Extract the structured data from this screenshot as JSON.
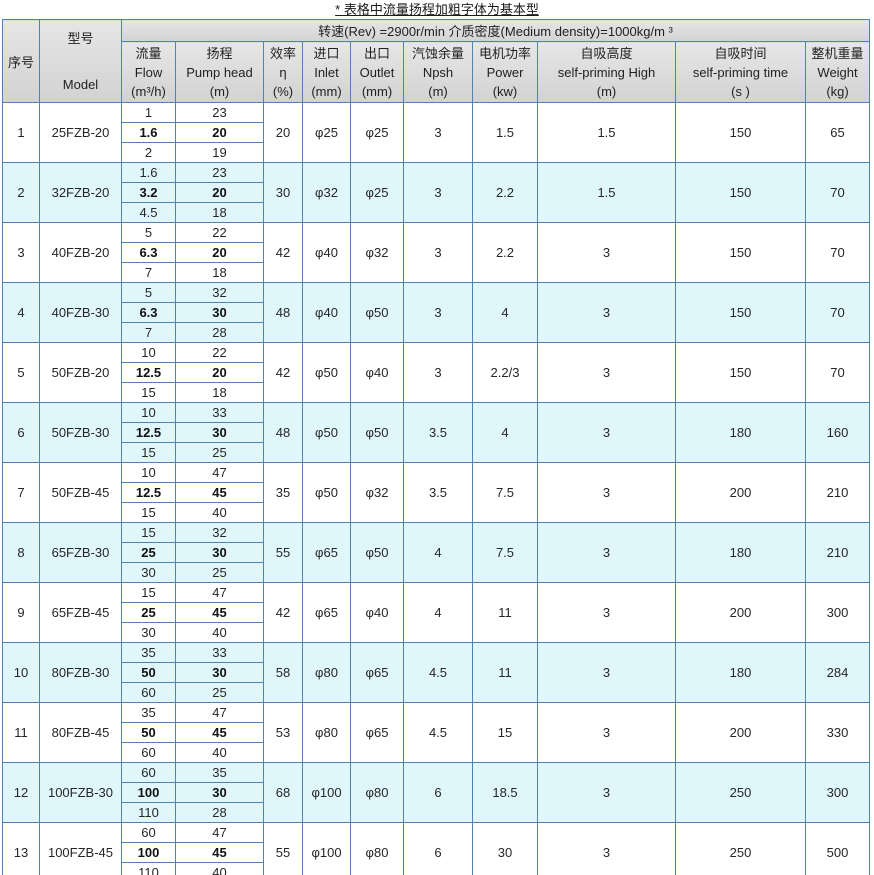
{
  "title": "* 表格中流量扬程加粗字体为基本型",
  "colors": {
    "border_inner": "#4f81b5",
    "border_outer_bottom": "#17375e",
    "row_shade": "#dff6fb",
    "header_bg": "#d9d9d9"
  },
  "table": {
    "span_header": "转速(Rev) =2900r/min  介质密度(Medium density)=1000kg/m ³",
    "columns": {
      "index": "序号",
      "model": [
        "型号",
        "Model"
      ],
      "flow": [
        "流量",
        "Flow",
        "(m³/h)"
      ],
      "head": [
        "扬程",
        "Pump head",
        "(m)"
      ],
      "eff": [
        "效率",
        "η",
        "(%)"
      ],
      "inlet": [
        "进口",
        "Inlet",
        "(mm)"
      ],
      "outlet": [
        "出口",
        "Outlet",
        "(mm)"
      ],
      "npsh": [
        "汽蚀余量",
        "Npsh",
        "(m)"
      ],
      "power": [
        "电机功率",
        "Power",
        "(kw)"
      ],
      "high": [
        "自吸高度",
        "self-priming High",
        "(m)"
      ],
      "time": [
        "自吸时间",
        "self-priming time",
        "(s )"
      ],
      "weight": [
        "整机重量",
        "Weight",
        "(kg)"
      ]
    },
    "column_keys": [
      "flow",
      "head",
      "eff",
      "inlet",
      "outlet",
      "npsh",
      "power",
      "high",
      "time",
      "weight"
    ],
    "rows": [
      {
        "no": "1",
        "model": "25FZB-20",
        "flow": [
          "1",
          "1.6",
          "2"
        ],
        "head": [
          "23",
          "20",
          "19"
        ],
        "eff": "20",
        "inlet": "φ25",
        "outlet": "φ25",
        "npsh": "3",
        "power": "1.5",
        "high": "1.5",
        "time": "150",
        "weight": "65",
        "shaded": false
      },
      {
        "no": "2",
        "model": "32FZB-20",
        "flow": [
          "1.6",
          "3.2",
          "4.5"
        ],
        "head": [
          "23",
          "20",
          "18"
        ],
        "eff": "30",
        "inlet": "φ32",
        "outlet": "φ25",
        "npsh": "3",
        "power": "2.2",
        "high": "1.5",
        "time": "150",
        "weight": "70",
        "shaded": true
      },
      {
        "no": "3",
        "model": "40FZB-20",
        "flow": [
          "5",
          "6.3",
          "7"
        ],
        "head": [
          "22",
          "20",
          "18"
        ],
        "eff": "42",
        "inlet": "φ40",
        "outlet": "φ32",
        "npsh": "3",
        "power": "2.2",
        "high": "3",
        "time": "150",
        "weight": "70",
        "shaded": false
      },
      {
        "no": "4",
        "model": "40FZB-30",
        "flow": [
          "5",
          "6.3",
          "7"
        ],
        "head": [
          "32",
          "30",
          "28"
        ],
        "eff": "48",
        "inlet": "φ40",
        "outlet": "φ50",
        "npsh": "3",
        "power": "4",
        "high": "3",
        "time": "150",
        "weight": "70",
        "shaded": true
      },
      {
        "no": "5",
        "model": "50FZB-20",
        "flow": [
          "10",
          "12.5",
          "15"
        ],
        "head": [
          "22",
          "20",
          "18"
        ],
        "eff": "42",
        "inlet": "φ50",
        "outlet": "φ40",
        "npsh": "3",
        "power": "2.2/3",
        "high": "3",
        "time": "150",
        "weight": "70",
        "shaded": false
      },
      {
        "no": "6",
        "model": "50FZB-30",
        "flow": [
          "10",
          "12.5",
          "15"
        ],
        "head": [
          "33",
          "30",
          "25"
        ],
        "eff": "48",
        "inlet": "φ50",
        "outlet": "φ50",
        "npsh": "3.5",
        "power": "4",
        "high": "3",
        "time": "180",
        "weight": "160",
        "shaded": true
      },
      {
        "no": "7",
        "model": "50FZB-45",
        "flow": [
          "10",
          "12.5",
          "15"
        ],
        "head": [
          "47",
          "45",
          "40"
        ],
        "eff": "35",
        "inlet": "φ50",
        "outlet": "φ32",
        "npsh": "3.5",
        "power": "7.5",
        "high": "3",
        "time": "200",
        "weight": "210",
        "shaded": false
      },
      {
        "no": "8",
        "model": "65FZB-30",
        "flow": [
          "15",
          "25",
          "30"
        ],
        "head": [
          "32",
          "30",
          "25"
        ],
        "eff": "55",
        "inlet": "φ65",
        "outlet": "φ50",
        "npsh": "4",
        "power": "7.5",
        "high": "3",
        "time": "180",
        "weight": "210",
        "shaded": true
      },
      {
        "no": "9",
        "model": "65FZB-45",
        "flow": [
          "15",
          "25",
          "30"
        ],
        "head": [
          "47",
          "45",
          "40"
        ],
        "eff": "42",
        "inlet": "φ65",
        "outlet": "φ40",
        "npsh": "4",
        "power": "11",
        "high": "3",
        "time": "200",
        "weight": "300",
        "shaded": false
      },
      {
        "no": "10",
        "model": "80FZB-30",
        "flow": [
          "35",
          "50",
          "60"
        ],
        "head": [
          "33",
          "30",
          "25"
        ],
        "eff": "58",
        "inlet": "φ80",
        "outlet": "φ65",
        "npsh": "4.5",
        "power": "11",
        "high": "3",
        "time": "180",
        "weight": "284",
        "shaded": true
      },
      {
        "no": "11",
        "model": "80FZB-45",
        "flow": [
          "35",
          "50",
          "60"
        ],
        "head": [
          "47",
          "45",
          "40"
        ],
        "eff": "53",
        "inlet": "φ80",
        "outlet": "φ65",
        "npsh": "4.5",
        "power": "15",
        "high": "3",
        "time": "200",
        "weight": "330",
        "shaded": false
      },
      {
        "no": "12",
        "model": "100FZB-30",
        "flow": [
          "60",
          "100",
          "110"
        ],
        "head": [
          "35",
          "30",
          "28"
        ],
        "eff": "68",
        "inlet": "φ100",
        "outlet": "φ80",
        "npsh": "6",
        "power": "18.5",
        "high": "3",
        "time": "250",
        "weight": "300",
        "shaded": true
      },
      {
        "no": "13",
        "model": "100FZB-45",
        "flow": [
          "60",
          "100",
          "110"
        ],
        "head": [
          "47",
          "45",
          "40"
        ],
        "eff": "55",
        "inlet": "φ100",
        "outlet": "φ80",
        "npsh": "6",
        "power": "30",
        "high": "3",
        "time": "250",
        "weight": "500",
        "shaded": false
      }
    ]
  }
}
